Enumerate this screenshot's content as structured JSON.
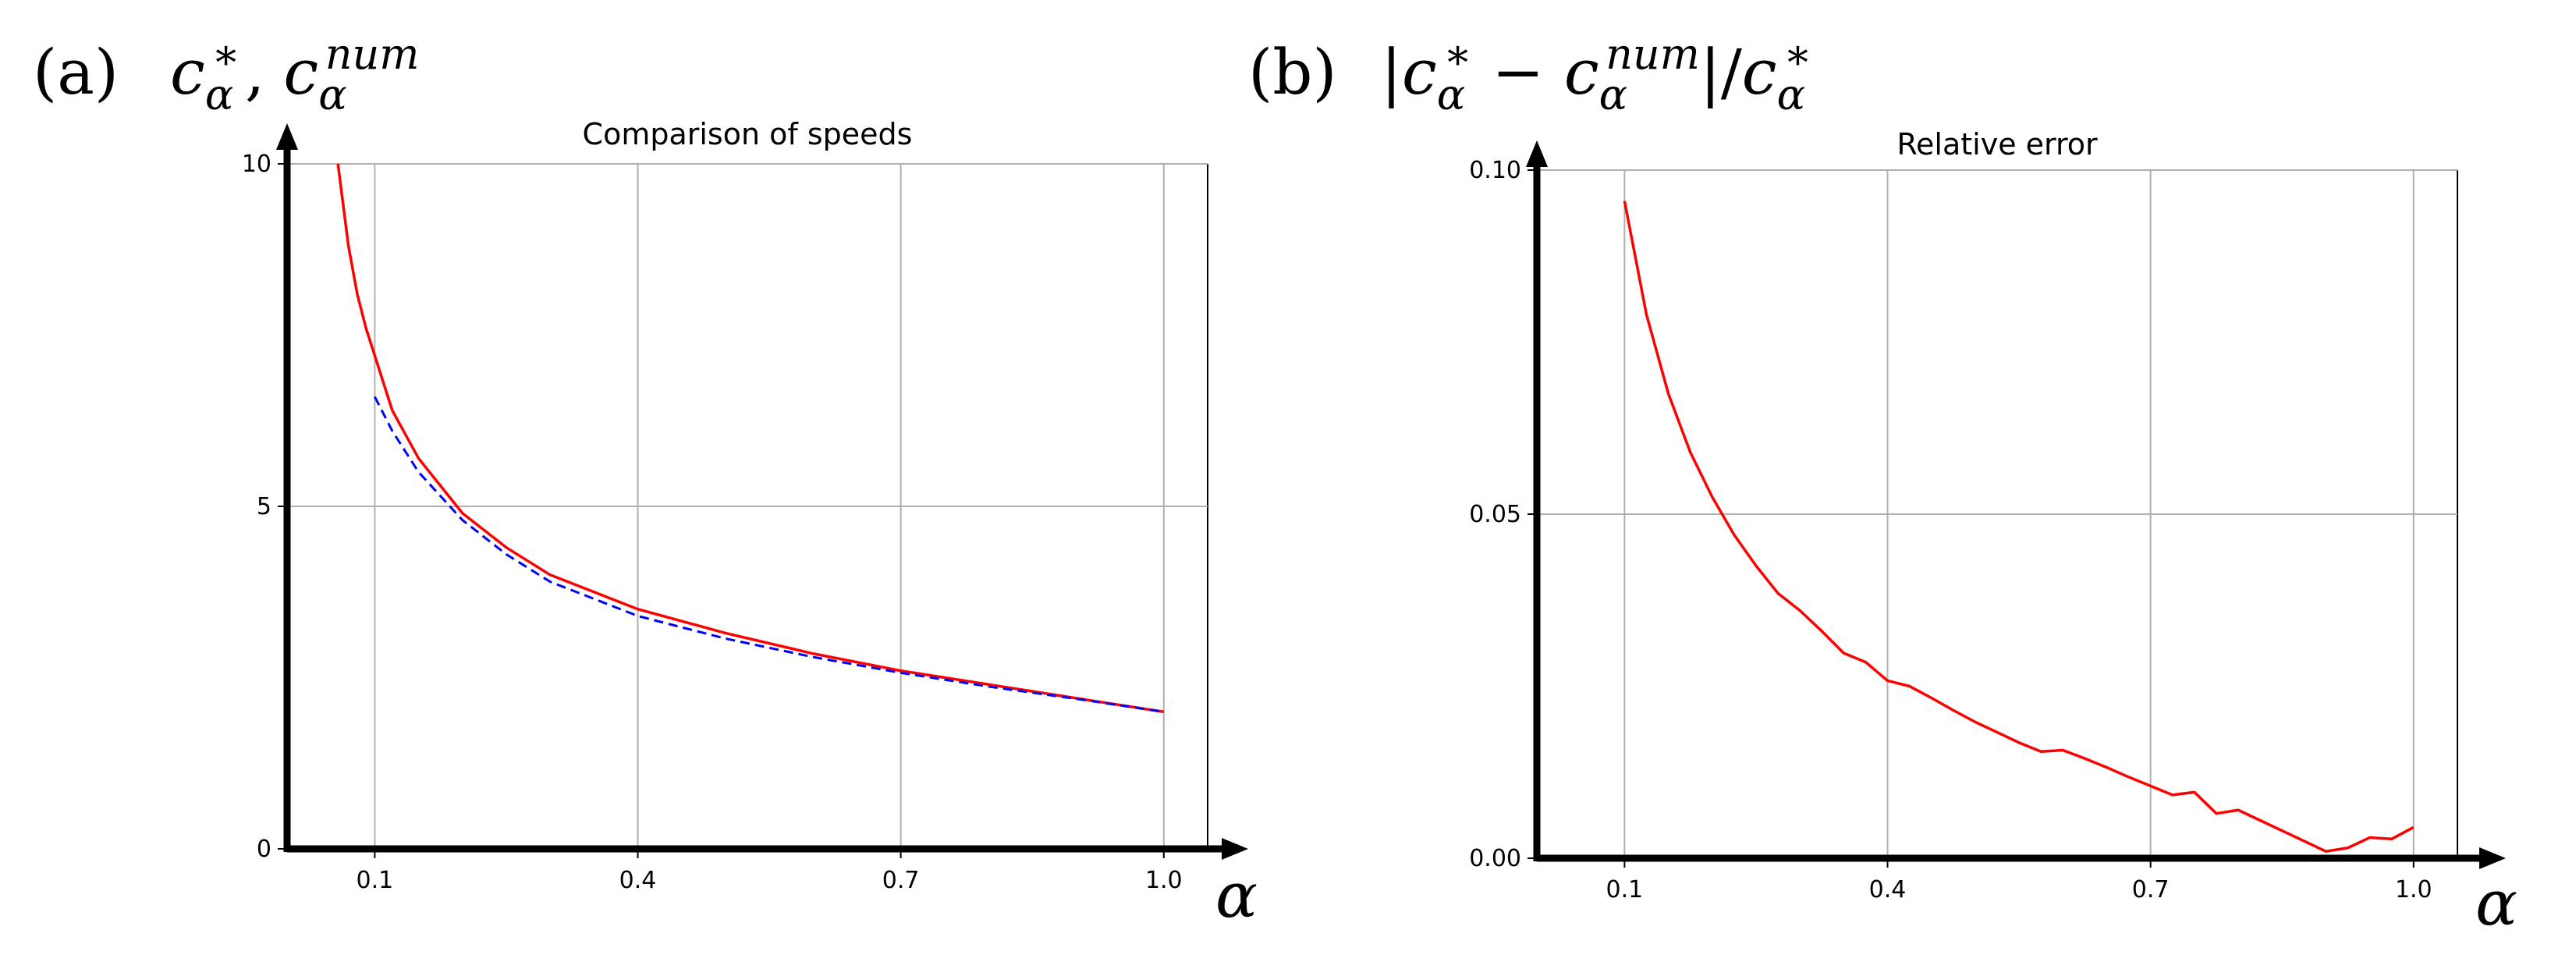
{
  "chart_data": [
    {
      "type": "line",
      "panel_label": "(a)",
      "heading": [
        "c",
        "α",
        "∗",
        ",",
        "c",
        "α",
        "num"
      ],
      "title": "Comparison of speeds",
      "xlabel": "α",
      "xlim": [
        0.0,
        1.05
      ],
      "ylim": [
        0,
        10
      ],
      "xticks": [
        0.1,
        0.4,
        0.7,
        1.0
      ],
      "xtick_labels": [
        "0.1",
        "0.4",
        "0.7",
        "1.0"
      ],
      "yticks": [
        0,
        5,
        10
      ],
      "ytick_labels": [
        "0",
        "5",
        "10"
      ],
      "grid": true,
      "series": [
        {
          "color": "#ff0000",
          "dash": "solid",
          "x": [
            0.058,
            0.07,
            0.08,
            0.09,
            0.1,
            0.12,
            0.15,
            0.2,
            0.25,
            0.3,
            0.4,
            0.5,
            0.6,
            0.7,
            0.8,
            0.9,
            1.0
          ],
          "y": [
            10.0,
            8.8,
            8.1,
            7.6,
            7.2,
            6.4,
            5.7,
            4.9,
            4.4,
            4.0,
            3.5,
            3.15,
            2.85,
            2.6,
            2.4,
            2.2,
            2.0
          ]
        },
        {
          "color": "#0000ff",
          "dash": "dashed",
          "x": [
            0.1,
            0.12,
            0.15,
            0.2,
            0.25,
            0.3,
            0.4,
            0.5,
            0.6,
            0.7,
            0.8,
            0.9,
            1.0
          ],
          "y": [
            6.6,
            6.1,
            5.5,
            4.8,
            4.3,
            3.9,
            3.4,
            3.07,
            2.8,
            2.57,
            2.37,
            2.19,
            2.0
          ]
        }
      ]
    },
    {
      "type": "line",
      "panel_label": "(b)",
      "heading": [
        "|",
        "c",
        "α",
        "∗",
        " − ",
        "c",
        "α",
        "num",
        "|/",
        "c",
        "α",
        "∗"
      ],
      "title": "Relative error",
      "xlabel": "α",
      "xlim": [
        0.0,
        1.05
      ],
      "ylim": [
        0.0,
        0.1
      ],
      "xticks": [
        0.1,
        0.4,
        0.7,
        1.0
      ],
      "xtick_labels": [
        "0.1",
        "0.4",
        "0.7",
        "1.0"
      ],
      "yticks": [
        0.0,
        0.05,
        0.1
      ],
      "ytick_labels": [
        "0.00",
        "0.05",
        "0.10"
      ],
      "grid": true,
      "series": [
        {
          "color": "#ff0000",
          "dash": "solid",
          "x": [
            0.1,
            0.125,
            0.15,
            0.175,
            0.2,
            0.225,
            0.25,
            0.275,
            0.3,
            0.325,
            0.35,
            0.375,
            0.4,
            0.425,
            0.45,
            0.475,
            0.5,
            0.525,
            0.55,
            0.575,
            0.6,
            0.625,
            0.65,
            0.675,
            0.7,
            0.725,
            0.75,
            0.775,
            0.8,
            0.825,
            0.85,
            0.875,
            0.9,
            0.925,
            0.95,
            0.975,
            1.0
          ],
          "y": [
            0.0955,
            0.079,
            0.0675,
            0.059,
            0.0525,
            0.047,
            0.0425,
            0.0385,
            0.036,
            0.033,
            0.0298,
            0.0285,
            0.0258,
            0.025,
            0.0233,
            0.0215,
            0.0198,
            0.0183,
            0.0168,
            0.0155,
            0.0157,
            0.0145,
            0.0132,
            0.0118,
            0.0105,
            0.0092,
            0.0096,
            0.0065,
            0.007,
            0.0055,
            0.004,
            0.0025,
            0.001,
            0.0015,
            0.003,
            0.0028,
            0.0045
          ]
        }
      ]
    }
  ]
}
